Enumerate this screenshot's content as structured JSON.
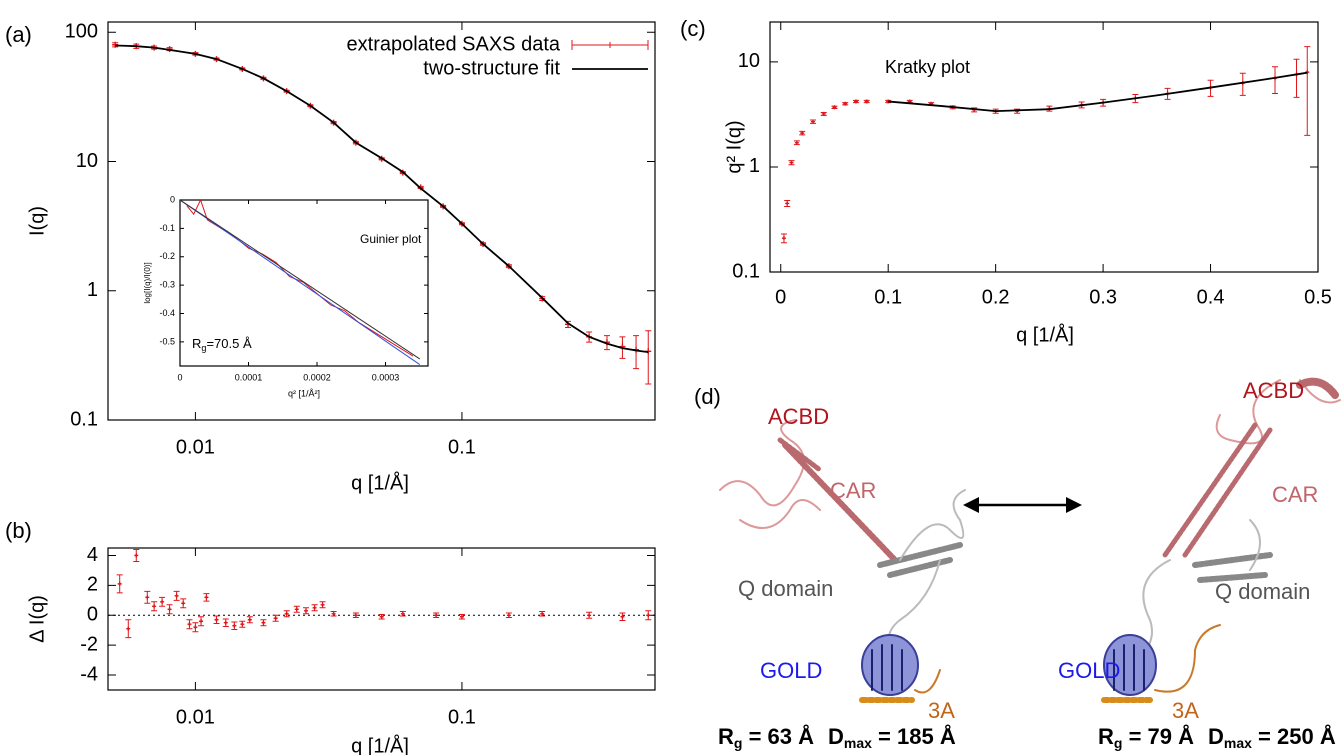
{
  "chart_data": [
    {
      "type": "line",
      "panel_label": "(a)",
      "xlabel": "q [1/Å]",
      "ylabel": "I(q)",
      "xscale": "log",
      "yscale": "log",
      "xlim": [
        0.0047,
        0.53
      ],
      "ylim": [
        0.1,
        120
      ],
      "xticks": [
        0.01,
        0.1
      ],
      "yticks": [
        0.1,
        1,
        10,
        100
      ],
      "legend": "upper right",
      "series": [
        {
          "name": "extrapolated SAXS data",
          "color": "#e0161b",
          "style": "errorbar",
          "x": [
            0.005,
            0.006,
            0.007,
            0.008,
            0.01,
            0.012,
            0.015,
            0.018,
            0.022,
            0.027,
            0.033,
            0.04,
            0.05,
            0.06,
            0.07,
            0.085,
            0.1,
            0.12,
            0.15,
            0.2,
            0.25,
            0.3,
            0.35,
            0.4,
            0.45,
            0.5
          ],
          "values": [
            80,
            78,
            76,
            74,
            68,
            62,
            52,
            44,
            35,
            27,
            20,
            14,
            10.5,
            8.2,
            6.3,
            4.5,
            3.3,
            2.3,
            1.55,
            0.87,
            0.55,
            0.44,
            0.4,
            0.37,
            0.35,
            0.34
          ],
          "errors": [
            3,
            3,
            2,
            2,
            1.5,
            1.2,
            1,
            0.8,
            0.6,
            0.5,
            0.4,
            0.3,
            0.2,
            0.15,
            0.12,
            0.08,
            0.06,
            0.05,
            0.04,
            0.03,
            0.03,
            0.04,
            0.05,
            0.07,
            0.1,
            0.15
          ]
        },
        {
          "name": "two-structure fit",
          "color": "#000000",
          "style": "line",
          "x": [
            0.005,
            0.006,
            0.007,
            0.008,
            0.01,
            0.012,
            0.015,
            0.018,
            0.022,
            0.027,
            0.033,
            0.04,
            0.05,
            0.06,
            0.07,
            0.085,
            0.1,
            0.12,
            0.15,
            0.2,
            0.25,
            0.3,
            0.35,
            0.4,
            0.45,
            0.5
          ],
          "values": [
            79,
            78,
            76,
            73,
            68,
            62,
            52,
            44,
            35,
            27,
            20,
            14,
            10.6,
            8.3,
            6.2,
            4.5,
            3.3,
            2.3,
            1.55,
            0.88,
            0.56,
            0.44,
            0.39,
            0.36,
            0.345,
            0.335
          ]
        }
      ]
    },
    {
      "type": "line",
      "title": "Guinier plot",
      "xlabel": "q² [1/Å²]",
      "ylabel": "log[I(q)/I(0)]",
      "annotation": [
        "R",
        "g",
        "=70.5 Å"
      ],
      "xlim": [
        0,
        0.000362
      ],
      "ylim": [
        -0.585,
        0
      ],
      "xticks": [
        0,
        0.0001,
        0.0002,
        0.0003
      ],
      "yticks": [
        0,
        -0.1,
        -0.2,
        -0.3,
        -0.4,
        -0.5
      ],
      "series": [
        {
          "color": "#e0161b",
          "style": "line",
          "x": [
            1e-05,
            2e-05,
            3e-05,
            4e-05,
            6e-05,
            8e-05,
            0.0001,
            0.00012,
            0.00014,
            0.00016,
            0.00018,
            0.0002,
            0.00022,
            0.00024,
            0.00026,
            0.00028,
            0.0003,
            0.00032,
            0.00034
          ],
          "values": [
            -0.02,
            -0.05,
            0,
            -0.07,
            -0.1,
            -0.13,
            -0.17,
            -0.19,
            -0.22,
            -0.27,
            -0.29,
            -0.33,
            -0.37,
            -0.39,
            -0.43,
            -0.46,
            -0.49,
            -0.52,
            -0.55
          ]
        },
        {
          "color": "#3050e0",
          "style": "line",
          "x": [
            0,
            0.00035
          ],
          "values": [
            0,
            -0.58
          ]
        },
        {
          "color": "#333333",
          "style": "line",
          "x": [
            0,
            0.00035
          ],
          "values": [
            0,
            -0.56
          ]
        }
      ]
    },
    {
      "type": "scatter",
      "panel_label": "(b)",
      "xlabel": "q [1/Å]",
      "ylabel": "Δ I(q)",
      "xscale": "log",
      "xlim": [
        0.0047,
        0.53
      ],
      "ylim": [
        -5,
        4.5
      ],
      "xticks": [
        0.01,
        0.1
      ],
      "yticks": [
        4,
        2,
        0,
        -2,
        -4
      ],
      "zero_line": true,
      "series": [
        {
          "color": "#e0161b",
          "style": "errorbar",
          "x": [
            0.0052,
            0.0056,
            0.006,
            0.0066,
            0.007,
            0.0075,
            0.008,
            0.0085,
            0.009,
            0.0095,
            0.01,
            0.0105,
            0.011,
            0.012,
            0.013,
            0.014,
            0.015,
            0.016,
            0.018,
            0.02,
            0.022,
            0.024,
            0.026,
            0.028,
            0.03,
            0.033,
            0.04,
            0.05,
            0.06,
            0.08,
            0.1,
            0.15,
            0.2,
            0.3,
            0.4,
            0.5
          ],
          "values": [
            2.1,
            -0.9,
            4.0,
            1.2,
            0.6,
            0.9,
            0.4,
            1.3,
            0.8,
            -0.6,
            -0.8,
            -0.4,
            1.2,
            -0.3,
            -0.5,
            -0.7,
            -0.6,
            -0.3,
            -0.5,
            -0.2,
            0.1,
            0.4,
            0.3,
            0.5,
            0.7,
            0.1,
            0.0,
            -0.1,
            0.1,
            0.0,
            -0.1,
            0.0,
            0.1,
            0.0,
            -0.1,
            0.0
          ],
          "errors": [
            0.6,
            0.6,
            0.4,
            0.4,
            0.3,
            0.3,
            0.3,
            0.3,
            0.3,
            0.3,
            0.3,
            0.3,
            0.25,
            0.25,
            0.25,
            0.25,
            0.2,
            0.2,
            0.2,
            0.2,
            0.2,
            0.2,
            0.2,
            0.2,
            0.2,
            0.15,
            0.15,
            0.15,
            0.15,
            0.15,
            0.15,
            0.15,
            0.15,
            0.2,
            0.25,
            0.3
          ]
        }
      ]
    },
    {
      "type": "line",
      "panel_label": "(c)",
      "title": "Kratky plot",
      "xlabel": "q [1/Å]",
      "ylabel": "q² I(q)",
      "yscale": "log",
      "xlim": [
        -0.01,
        0.5
      ],
      "ylim": [
        0.1,
        24
      ],
      "xticks": [
        0,
        0.1,
        0.2,
        0.3,
        0.4,
        0.5
      ],
      "yticks": [
        0.1,
        1,
        10
      ],
      "series": [
        {
          "color": "#e0161b",
          "style": "errorbar",
          "x": [
            0.003,
            0.006,
            0.01,
            0.015,
            0.02,
            0.03,
            0.04,
            0.05,
            0.06,
            0.07,
            0.08,
            0.1,
            0.12,
            0.14,
            0.16,
            0.18,
            0.2,
            0.22,
            0.25,
            0.28,
            0.3,
            0.33,
            0.36,
            0.4,
            0.43,
            0.46,
            0.48,
            0.49
          ],
          "values": [
            0.21,
            0.45,
            1.1,
            1.7,
            2.1,
            2.7,
            3.2,
            3.7,
            4.0,
            4.2,
            4.2,
            4.2,
            4.2,
            4.0,
            3.7,
            3.5,
            3.4,
            3.4,
            3.6,
            3.9,
            4.1,
            4.5,
            5.0,
            5.7,
            6.3,
            7.0,
            7.6,
            8.0
          ],
          "errors": [
            0.02,
            0.03,
            0.05,
            0.07,
            0.08,
            0.1,
            0.1,
            0.1,
            0.1,
            0.1,
            0.1,
            0.1,
            0.1,
            0.1,
            0.12,
            0.15,
            0.15,
            0.15,
            0.2,
            0.25,
            0.3,
            0.4,
            0.6,
            1,
            1.5,
            2,
            3,
            6
          ]
        },
        {
          "color": "#000000",
          "style": "line",
          "x": [
            0.1,
            0.15,
            0.2,
            0.25,
            0.3,
            0.35,
            0.4,
            0.45,
            0.49
          ],
          "values": [
            4.2,
            3.8,
            3.4,
            3.55,
            4.1,
            4.8,
            5.7,
            6.8,
            7.9
          ]
        }
      ]
    }
  ],
  "panel_d": {
    "label": "(d)",
    "left": {
      "acbd": "ACBD",
      "car": "CAR",
      "q_domain": "Q domain",
      "gold": "GOLD",
      "three_a": "3A",
      "rg": {
        "symbol": "R",
        "sub": "g",
        "value": " = 63 Å"
      },
      "dmax": {
        "symbol": "D",
        "sub": "max",
        "value": " = 185 Å"
      }
    },
    "right": {
      "acbd": "ACBD",
      "car": "CAR",
      "q_domain": "Q domain",
      "gold": "GOLD",
      "three_a": "3A",
      "rg": {
        "symbol": "R",
        "sub": "g",
        "value": " = 79 Å"
      },
      "dmax": {
        "symbol": "D",
        "sub": "max",
        "value": " = 250 Å"
      }
    }
  }
}
